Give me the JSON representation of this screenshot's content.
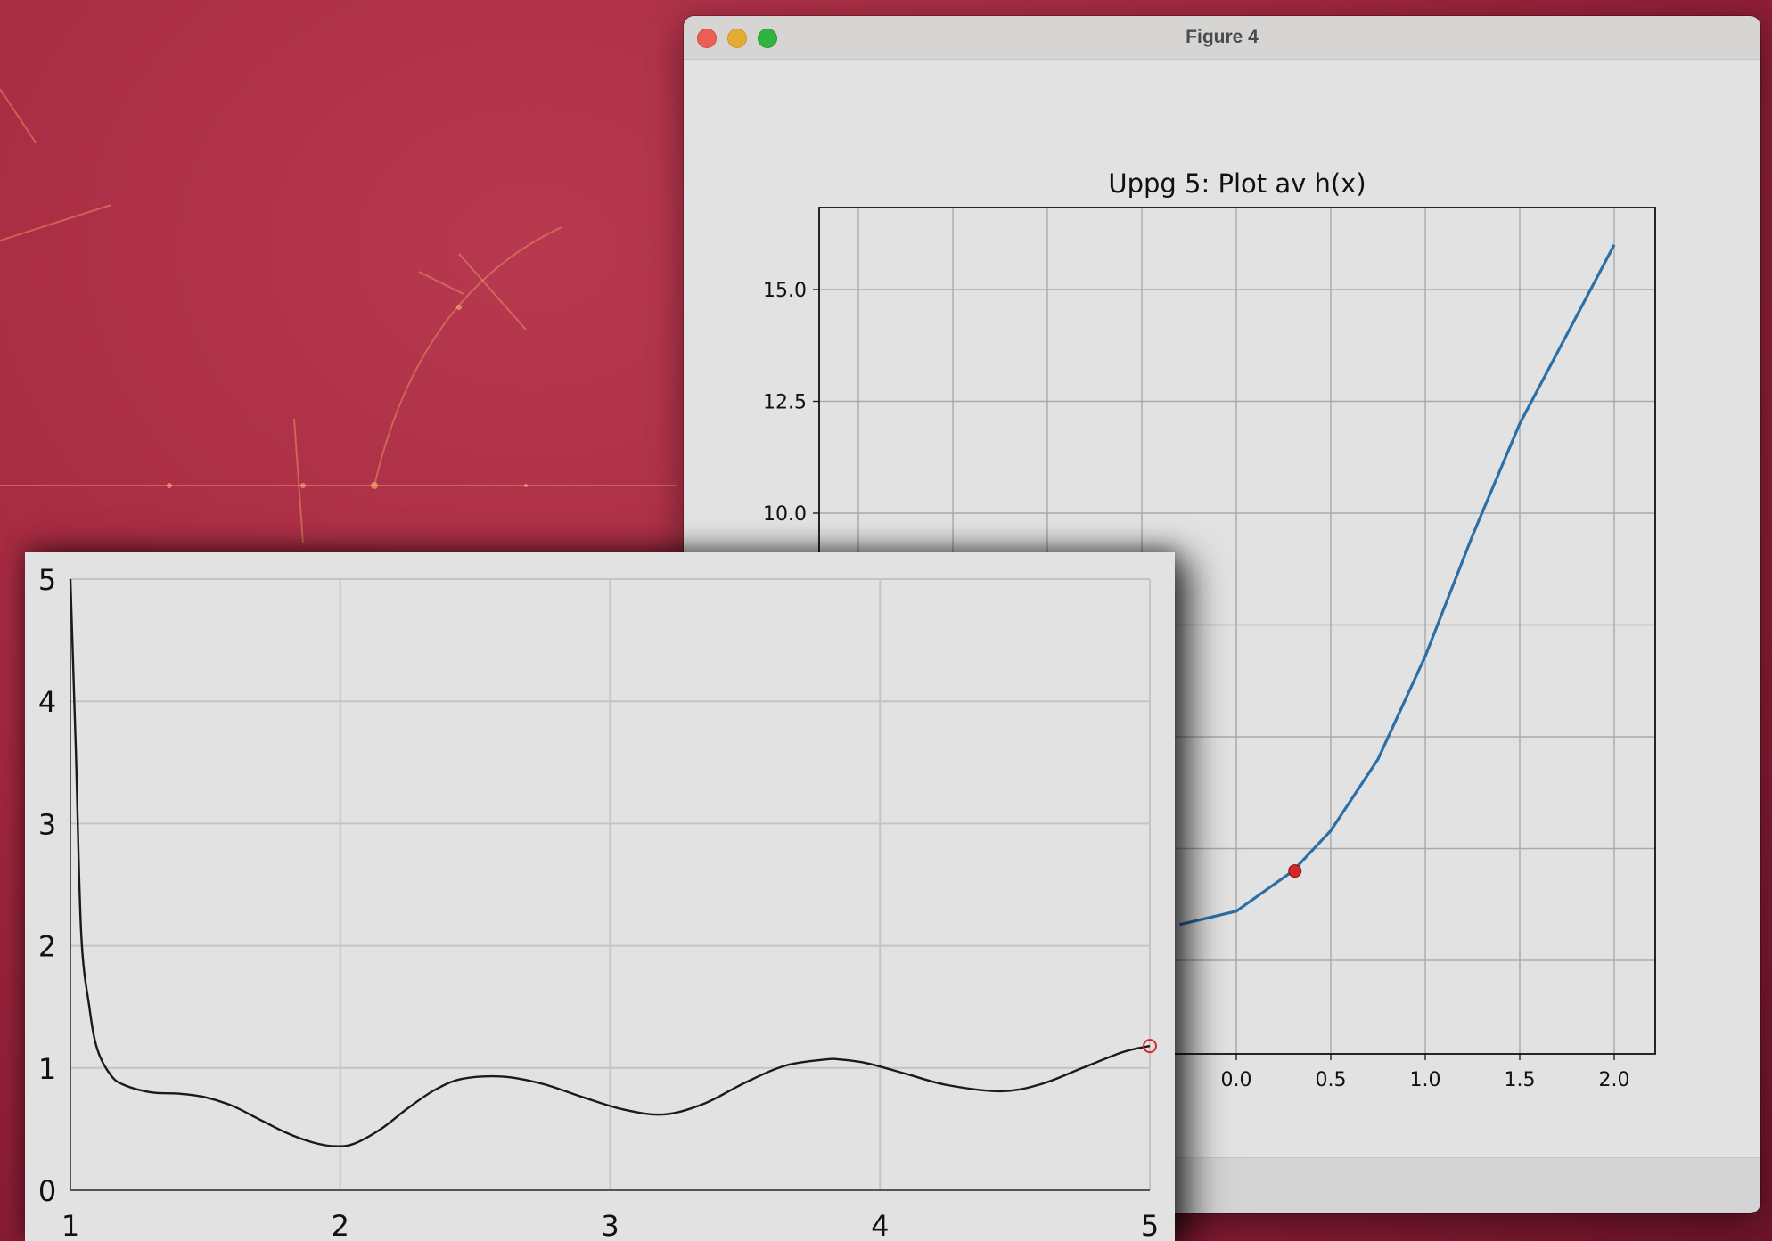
{
  "window": {
    "title": "Figure 4",
    "controls": [
      "close",
      "minimize",
      "zoom"
    ]
  },
  "colors": {
    "fig4_line": "#2b6fa6",
    "marker": "#d62728",
    "fig5_line": "#1a1a1a"
  },
  "chart_data": [
    {
      "type": "line",
      "title": "Uppg 5: Plot av h(x)",
      "xlabel": "",
      "ylabel": "",
      "visible_xticks": [
        "0.0",
        "0.5",
        "1.0",
        "1.5",
        "2.0"
      ],
      "visible_yticks": [
        "10.0",
        "12.5",
        "15.0"
      ],
      "grid": true,
      "series": [
        {
          "x": [
            -0.3,
            0.0,
            0.3,
            0.5,
            0.75,
            1.0,
            1.25,
            1.5,
            1.75,
            2.0
          ],
          "y": [
            0.8,
            1.1,
            2.0,
            2.9,
            4.5,
            6.8,
            9.5,
            12.0,
            14.0,
            16.0
          ]
        }
      ],
      "markers": [
        {
          "x": 0.31,
          "y": 2.0,
          "style": "filled circle"
        }
      ]
    },
    {
      "type": "line",
      "title": "",
      "xlabel": "",
      "ylabel": "",
      "xticks": [
        "1",
        "2",
        "3",
        "4",
        "5"
      ],
      "yticks": [
        "0",
        "1",
        "2",
        "3",
        "4",
        "5"
      ],
      "xlim": [
        1,
        5
      ],
      "ylim": [
        0,
        5
      ],
      "grid": true,
      "series": [
        {
          "x": [
            1.0,
            1.02,
            1.04,
            1.07,
            1.1,
            1.15,
            1.2,
            1.3,
            1.4,
            1.5,
            1.6,
            1.7,
            1.8,
            1.9,
            1.98,
            2.05,
            2.15,
            2.25,
            2.35,
            2.45,
            2.6,
            2.75,
            2.9,
            3.05,
            3.2,
            3.35,
            3.5,
            3.65,
            3.8,
            3.85,
            3.95,
            4.1,
            4.25,
            4.45,
            4.6,
            4.75,
            4.9,
            5.0
          ],
          "y": [
            5.0,
            3.6,
            2.1,
            1.5,
            1.15,
            0.94,
            0.86,
            0.8,
            0.79,
            0.76,
            0.69,
            0.58,
            0.47,
            0.39,
            0.36,
            0.38,
            0.5,
            0.67,
            0.82,
            0.91,
            0.93,
            0.87,
            0.76,
            0.66,
            0.62,
            0.71,
            0.88,
            1.02,
            1.07,
            1.07,
            1.04,
            0.95,
            0.86,
            0.81,
            0.87,
            1.0,
            1.13,
            1.18
          ]
        }
      ],
      "markers": [
        {
          "x": 5.0,
          "y": 1.18,
          "style": "open circle"
        }
      ]
    }
  ]
}
